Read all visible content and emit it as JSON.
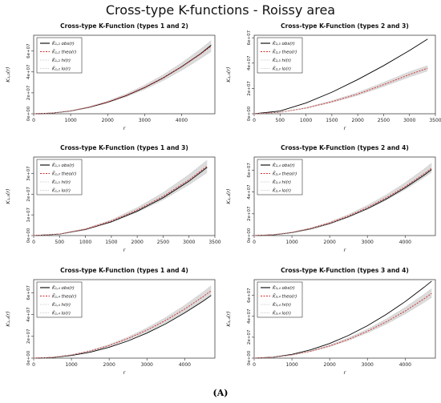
{
  "figure": {
    "title": "Cross-type K-functions - Roissy area",
    "caption": "(A)"
  },
  "chart_data": [
    {
      "type": "line",
      "title": "Cross-type K-Function (types 1 and 2)",
      "xlabel": "r",
      "ylabel": "K₁,₂(r)",
      "xlim": [
        0,
        4900
      ],
      "ylim": [
        0,
        75000000
      ],
      "xticks": [
        0,
        1000,
        2000,
        3000,
        4000
      ],
      "xtick_labels": [
        "0",
        "1000",
        "2000",
        "3000",
        "4000"
      ],
      "yticks": [
        0,
        20000000,
        40000000,
        60000000
      ],
      "ytick_labels": [
        "0e+00",
        "2e+07",
        "4e+07",
        "6e+07"
      ],
      "legend": [
        "K̂₁,₂ obs(r)",
        "K̄₁,₂ theo(r)",
        "K̂₁,₂ hi(r)",
        "K̂₁,₂ lo(r)"
      ],
      "legend_position": "top-left",
      "x": [
        0,
        500,
        1000,
        1500,
        2000,
        2500,
        3000,
        3500,
        4000,
        4500,
        4800
      ],
      "series": [
        {
          "name": "obs",
          "color": "#000000",
          "values": [
            0,
            650000,
            2600000,
            6100000,
            11000000,
            17300000,
            25000000,
            34200000,
            45000000,
            57000000,
            65500000
          ]
        },
        {
          "name": "theo",
          "color": "#d62728",
          "values": [
            0,
            700000,
            2800000,
            6300000,
            11200000,
            17500000,
            25200000,
            34300000,
            44800000,
            56700000,
            64500000
          ]
        },
        {
          "name": "hi",
          "color": "#bdbdbd",
          "values": [
            0,
            760000,
            3050000,
            6850000,
            12200000,
            19000000,
            27400000,
            37200000,
            48600000,
            61500000,
            70000000
          ]
        },
        {
          "name": "lo",
          "color": "#bdbdbd",
          "values": [
            0,
            650000,
            2600000,
            5850000,
            10400000,
            16200000,
            23300000,
            31700000,
            41400000,
            52400000,
            59500000
          ]
        }
      ]
    },
    {
      "type": "line",
      "title": "Cross-type K-Function (types 2 and 3)",
      "xlabel": "r",
      "ylabel": "K₂,₃(r)",
      "xlim": [
        0,
        3500
      ],
      "ylim": [
        0,
        62000000
      ],
      "xticks": [
        0,
        500,
        1000,
        1500,
        2000,
        2500,
        3000,
        3500
      ],
      "xtick_labels": [
        "0",
        "500",
        "1000",
        "1500",
        "2000",
        "2500",
        "3000",
        "3500"
      ],
      "yticks": [
        0,
        20000000,
        40000000,
        60000000
      ],
      "ytick_labels": [
        "0e+00",
        "2e+07",
        "4e+07",
        "6e+07"
      ],
      "legend": [
        "K̂₂,₃ obs(r)",
        "K̄₂,₃ theo(r)",
        "K̂₂,₃ hi(r)",
        "K̂₂,₃ lo(r)"
      ],
      "legend_position": "top-left",
      "x": [
        0,
        500,
        1000,
        1500,
        2000,
        2500,
        3000,
        3350
      ],
      "series": [
        {
          "name": "obs",
          "color": "#000000",
          "values": [
            0,
            2200000,
            8500000,
            17000000,
            27000000,
            38000000,
            50000000,
            59000000
          ]
        },
        {
          "name": "theo",
          "color": "#d62728",
          "values": [
            0,
            1200000,
            4500000,
            9500000,
            15500000,
            23000000,
            31000000,
            36000000
          ]
        },
        {
          "name": "hi",
          "color": "#bdbdbd",
          "values": [
            0,
            1300000,
            4900000,
            10300000,
            16800000,
            24800000,
            33200000,
            38000000
          ]
        },
        {
          "name": "lo",
          "color": "#bdbdbd",
          "values": [
            0,
            1100000,
            4200000,
            8900000,
            14500000,
            21500000,
            29000000,
            33800000
          ]
        }
      ]
    },
    {
      "type": "line",
      "title": "Cross-type K-Function (types 1 and 3)",
      "xlabel": "r",
      "ylabel": "K₁,₃(r)",
      "xlim": [
        0,
        3500
      ],
      "ylim": [
        0,
        38000000
      ],
      "xticks": [
        0,
        500,
        1000,
        1500,
        2000,
        2500,
        3000,
        3500
      ],
      "xtick_labels": [
        "0",
        "500",
        "1000",
        "1500",
        "2000",
        "2500",
        "3000",
        "3500"
      ],
      "yticks": [
        0,
        10000000,
        20000000,
        30000000
      ],
      "ytick_labels": [
        "0e+00",
        "1e+07",
        "2e+07",
        "3e+07"
      ],
      "legend": [
        "K̂₁,₃ obs(r)",
        "K̄₁,₃ theo(r)",
        "K̂₁,₃ hi(r)",
        "K̂₁,₃ lo(r)"
      ],
      "legend_position": "top-left",
      "x": [
        0,
        500,
        1000,
        1500,
        2000,
        2500,
        3000,
        3350
      ],
      "series": [
        {
          "name": "obs",
          "color": "#000000",
          "values": [
            0,
            700000,
            2900000,
            6600000,
            11800000,
            18300000,
            26300000,
            33000000
          ]
        },
        {
          "name": "theo",
          "color": "#d62728",
          "values": [
            0,
            780000,
            3100000,
            7000000,
            12400000,
            19000000,
            27000000,
            33600000
          ]
        },
        {
          "name": "hi",
          "color": "#bdbdbd",
          "values": [
            0,
            850000,
            3400000,
            7600000,
            13500000,
            20800000,
            29500000,
            36500000
          ]
        },
        {
          "name": "lo",
          "color": "#bdbdbd",
          "values": [
            0,
            700000,
            2800000,
            6400000,
            11300000,
            17300000,
            24600000,
            30500000
          ]
        }
      ]
    },
    {
      "type": "line",
      "title": "Cross-type K-Function (types 2 and 4)",
      "xlabel": "r",
      "ylabel": "K₂,₄(r)",
      "xlim": [
        0,
        4800
      ],
      "ylim": [
        0,
        72000000
      ],
      "xticks": [
        0,
        1000,
        2000,
        3000,
        4000
      ],
      "xtick_labels": [
        "0",
        "1000",
        "2000",
        "3000",
        "4000"
      ],
      "yticks": [
        0,
        20000000,
        40000000,
        60000000
      ],
      "ytick_labels": [
        "0e+00",
        "2e+07",
        "4e+07",
        "6e+07"
      ],
      "legend": [
        "K̂₂,₄ obs(r)",
        "K̄₂,₄ theo(r)",
        "K̂₂,₄ hi(r)",
        "K̂₂,₄ lo(r)"
      ],
      "legend_position": "top-left",
      "x": [
        0,
        500,
        1000,
        1500,
        2000,
        2500,
        3000,
        3500,
        4000,
        4500,
        4700
      ],
      "series": [
        {
          "name": "obs",
          "color": "#000000",
          "values": [
            0,
            650000,
            2700000,
            6100000,
            10900000,
            17100000,
            24600000,
            33500000,
            43800000,
            55400000,
            60500000
          ]
        },
        {
          "name": "theo",
          "color": "#d62728",
          "values": [
            0,
            750000,
            3000000,
            6600000,
            11600000,
            18000000,
            25700000,
            34700000,
            45000000,
            56700000,
            61800000
          ]
        },
        {
          "name": "hi",
          "color": "#bdbdbd",
          "values": [
            0,
            800000,
            3200000,
            7100000,
            12500000,
            19400000,
            27700000,
            37400000,
            48500000,
            61000000,
            66500000
          ]
        },
        {
          "name": "lo",
          "color": "#bdbdbd",
          "values": [
            0,
            700000,
            2800000,
            6200000,
            10900000,
            16900000,
            24100000,
            32500000,
            42200000,
            53200000,
            58000000
          ]
        }
      ]
    },
    {
      "type": "line",
      "title": "Cross-type K-Function (types 1 and 4)",
      "xlabel": "r",
      "ylabel": "K₁,₄(r)",
      "xlim": [
        0,
        4800
      ],
      "ylim": [
        0,
        72000000
      ],
      "xticks": [
        0,
        1000,
        2000,
        3000,
        4000
      ],
      "xtick_labels": [
        "0",
        "1000",
        "2000",
        "3000",
        "4000"
      ],
      "yticks": [
        0,
        20000000,
        40000000,
        60000000
      ],
      "ytick_labels": [
        "0e+00",
        "2e+07",
        "4e+07",
        "6e+07"
      ],
      "legend": [
        "K̂₁,₄ obs(r)",
        "K̄₁,₄ theo(r)",
        "K̂₁,₄ hi(r)",
        "K̂₁,₄ lo(r)"
      ],
      "legend_position": "top-left",
      "x": [
        0,
        500,
        1000,
        1500,
        2000,
        2500,
        3000,
        3500,
        4000,
        4500,
        4700
      ],
      "series": [
        {
          "name": "obs",
          "color": "#000000",
          "values": [
            0,
            600000,
            2400000,
            5500000,
            10000000,
            15800000,
            23000000,
            31500000,
            41500000,
            52500000,
            57500000
          ]
        },
        {
          "name": "theo",
          "color": "#d62728",
          "values": [
            0,
            750000,
            3000000,
            6600000,
            11600000,
            18000000,
            25700000,
            34700000,
            45000000,
            56700000,
            61800000
          ]
        },
        {
          "name": "hi",
          "color": "#bdbdbd",
          "values": [
            0,
            800000,
            3200000,
            7100000,
            12500000,
            19400000,
            27700000,
            37400000,
            48500000,
            61000000,
            66500000
          ]
        },
        {
          "name": "lo",
          "color": "#bdbdbd",
          "values": [
            0,
            700000,
            2800000,
            6200000,
            10900000,
            16900000,
            24100000,
            32500000,
            42200000,
            53200000,
            58000000
          ]
        }
      ]
    },
    {
      "type": "line",
      "title": "Cross-type K-Function (types 3 and 4)",
      "xlabel": "r",
      "ylabel": "K₃,₄(r)",
      "xlim": [
        0,
        4800
      ],
      "ylim": [
        0,
        75000000
      ],
      "xticks": [
        0,
        1000,
        2000,
        3000,
        4000
      ],
      "xtick_labels": [
        "0",
        "1000",
        "2000",
        "3000",
        "4000"
      ],
      "yticks": [
        0,
        20000000,
        40000000,
        60000000
      ],
      "ytick_labels": [
        "0e+00",
        "2e+07",
        "4e+07",
        "6e+07"
      ],
      "legend": [
        "K̂₃,₄ obs(r)",
        "K̄₃,₄ theo(r)",
        "K̂₃,₄ hi(r)",
        "K̂₃,₄ lo(r)"
      ],
      "legend_position": "top-left",
      "x": [
        0,
        500,
        1000,
        1500,
        2000,
        2500,
        3000,
        3500,
        4000,
        4500,
        4700
      ],
      "series": [
        {
          "name": "obs",
          "color": "#000000",
          "values": [
            0,
            900000,
            3600000,
            8000000,
            14000000,
            21700000,
            31000000,
            41800000,
            54000000,
            67700000,
            73500000
          ]
        },
        {
          "name": "theo",
          "color": "#d62728",
          "values": [
            0,
            750000,
            3000000,
            6600000,
            11600000,
            18000000,
            25700000,
            34700000,
            45000000,
            56700000,
            61800000
          ]
        },
        {
          "name": "hi",
          "color": "#bdbdbd",
          "values": [
            0,
            800000,
            3200000,
            7100000,
            12500000,
            19400000,
            27700000,
            37400000,
            48500000,
            61000000,
            66500000
          ]
        },
        {
          "name": "lo",
          "color": "#bdbdbd",
          "values": [
            0,
            700000,
            2800000,
            6200000,
            10900000,
            16900000,
            24100000,
            32500000,
            42200000,
            53200000,
            58000000
          ]
        }
      ]
    }
  ]
}
